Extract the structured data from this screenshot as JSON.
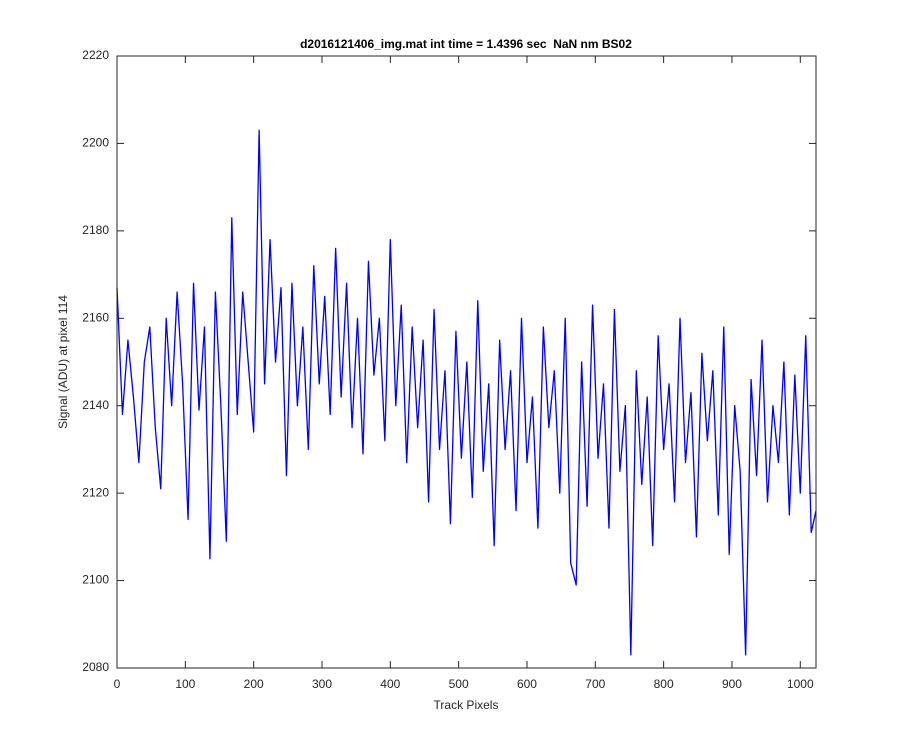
{
  "chart_data": {
    "type": "line",
    "title": "d2016121406_img.mat int time = 1.4396 sec  NaN nm BS02",
    "x_label": "Track Pixels",
    "y_label": "Signal (ADU) at pixel 114",
    "xlim": [
      0,
      1023
    ],
    "ylim": [
      2080,
      2220
    ],
    "xticks": [
      0,
      100,
      200,
      300,
      400,
      500,
      600,
      700,
      800,
      900,
      1000
    ],
    "yticks": [
      2080,
      2100,
      2120,
      2140,
      2160,
      2180,
      2200,
      2220
    ],
    "grid": false,
    "x": [
      0,
      8,
      16,
      24,
      32,
      40,
      48,
      56,
      64,
      72,
      80,
      88,
      96,
      104,
      112,
      120,
      128,
      136,
      144,
      152,
      160,
      168,
      176,
      184,
      192,
      200,
      208,
      216,
      224,
      232,
      240,
      248,
      256,
      264,
      272,
      280,
      288,
      296,
      304,
      312,
      320,
      328,
      336,
      344,
      352,
      360,
      368,
      376,
      384,
      392,
      400,
      408,
      416,
      424,
      432,
      440,
      448,
      456,
      464,
      472,
      480,
      488,
      496,
      504,
      512,
      520,
      528,
      536,
      544,
      552,
      560,
      568,
      576,
      584,
      592,
      600,
      608,
      616,
      624,
      632,
      640,
      648,
      656,
      664,
      672,
      680,
      688,
      696,
      704,
      712,
      720,
      728,
      736,
      744,
      752,
      760,
      768,
      776,
      784,
      792,
      800,
      808,
      816,
      824,
      832,
      840,
      848,
      856,
      864,
      872,
      880,
      888,
      896,
      904,
      912,
      920,
      928,
      936,
      944,
      952,
      960,
      968,
      976,
      984,
      992,
      1000,
      1008,
      1016,
      1023
    ],
    "series": [
      {
        "name": "signal",
        "color": "#0000ff",
        "values": [
          2167,
          2138,
          2155,
          2142,
          2127,
          2150,
          2158,
          2135,
          2121,
          2160,
          2140,
          2166,
          2145,
          2114,
          2168,
          2139,
          2158,
          2105,
          2166,
          2140,
          2109,
          2183,
          2138,
          2166,
          2150,
          2134,
          2203,
          2145,
          2178,
          2150,
          2167,
          2124,
          2168,
          2140,
          2158,
          2130,
          2172,
          2145,
          2165,
          2138,
          2176,
          2142,
          2168,
          2135,
          2160,
          2129,
          2173,
          2147,
          2160,
          2132,
          2178,
          2140,
          2163,
          2127,
          2158,
          2135,
          2155,
          2118,
          2162,
          2130,
          2148,
          2113,
          2157,
          2128,
          2150,
          2119,
          2164,
          2125,
          2145,
          2108,
          2155,
          2130,
          2148,
          2116,
          2160,
          2127,
          2142,
          2112,
          2158,
          2135,
          2148,
          2120,
          2160,
          2104,
          2099,
          2150,
          2117,
          2163,
          2128,
          2145,
          2112,
          2162,
          2125,
          2140,
          2083,
          2148,
          2122,
          2142,
          2108,
          2156,
          2130,
          2145,
          2118,
          2160,
          2127,
          2143,
          2110,
          2152,
          2132,
          2148,
          2115,
          2158,
          2106,
          2140,
          2125,
          2083,
          2146,
          2124,
          2155,
          2118,
          2140,
          2127,
          2150,
          2115,
          2147,
          2120,
          2156,
          2111,
          2116
        ]
      }
    ]
  }
}
